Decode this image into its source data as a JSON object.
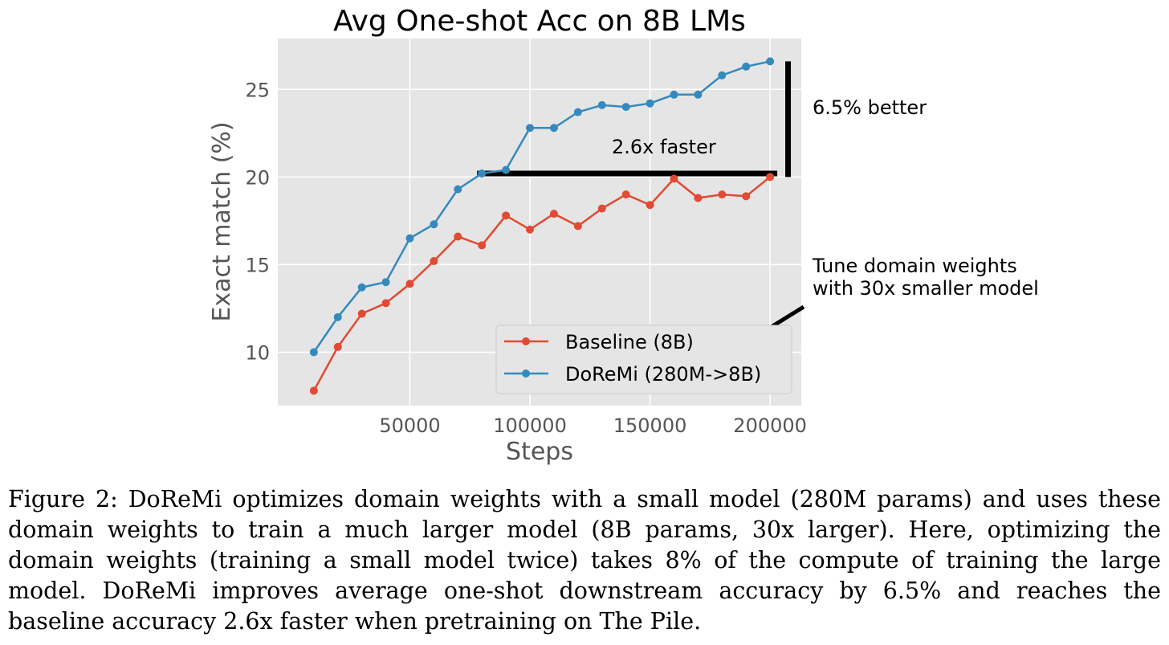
{
  "chart_data": {
    "type": "line",
    "title": "Avg One-shot Acc on 8B LMs",
    "xlabel": "Steps",
    "ylabel": "Exact match (%)",
    "xlim": [
      -5000,
      213000
    ],
    "ylim": [
      6.95,
      27.9
    ],
    "xticks": [
      50000,
      100000,
      150000,
      200000
    ],
    "xtick_labels": [
      "50000",
      "100000",
      "150000",
      "200000"
    ],
    "yticks": [
      10,
      15,
      20,
      25
    ],
    "ytick_labels": [
      "10",
      "15",
      "20",
      "25"
    ],
    "grid": true,
    "legend_position": "lower-right",
    "x": [
      10000,
      20000,
      30000,
      40000,
      50000,
      60000,
      70000,
      80000,
      90000,
      100000,
      110000,
      120000,
      130000,
      140000,
      150000,
      160000,
      170000,
      180000,
      190000,
      200000
    ],
    "series": [
      {
        "name": "Baseline (8B)",
        "color": "#e24a33",
        "values": [
          7.8,
          10.3,
          12.2,
          12.8,
          13.9,
          15.2,
          16.6,
          16.1,
          17.8,
          17.0,
          17.9,
          17.2,
          18.2,
          19.0,
          18.4,
          19.9,
          18.8,
          19.0,
          18.9,
          20.0
        ]
      },
      {
        "name": "DoReMi (280M->8B)",
        "color": "#348abd",
        "values": [
          10.0,
          12.0,
          13.7,
          14.0,
          16.5,
          17.3,
          19.3,
          20.2,
          20.4,
          22.8,
          22.8,
          23.7,
          24.1,
          24.0,
          24.2,
          24.7,
          24.7,
          25.8,
          26.3,
          26.6
        ]
      }
    ],
    "annotations": {
      "horizontal_bar": {
        "label": "2.6x faster",
        "x_start": 78000,
        "x_end": 203000,
        "y": 20.2
      },
      "vertical_bar": {
        "label": "6.5% better",
        "x": 207500,
        "y_start": 20.0,
        "y_end": 26.6
      },
      "arrow_note": {
        "line1": "Tune domain weights",
        "line2": "with 30x smaller model"
      }
    }
  },
  "caption": "Figure 2: DoReMi optimizes domain weights with a small model (280M params) and uses these domain weights to train a much larger model (8B params, 30x larger). Here, optimizing the domain weights (training a small model twice) takes 8% of the compute of training the large model. DoReMi improves average one-shot downstream accuracy by 6.5% and reaches the baseline accuracy 2.6x faster when pretraining on The Pile."
}
